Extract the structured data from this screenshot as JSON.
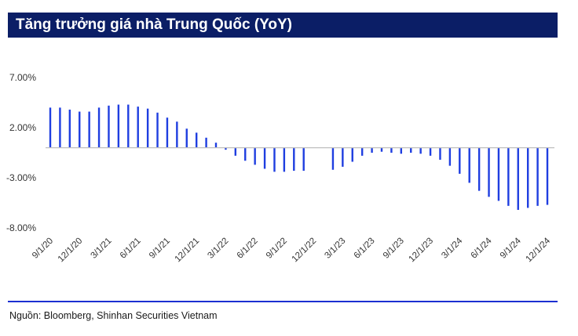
{
  "title": "Tăng trưởng giá nhà Trung Quốc (YoY)",
  "source": "Nguồn: Bloomberg, Shinhan Securities Vietnam",
  "colors": {
    "title_bg": "#0b1e66",
    "bar": "#1f3ee0",
    "footer_line": "#1b2fd1",
    "axis": "#bfbfbf",
    "tick_text": "#333333"
  },
  "chart_data": {
    "type": "bar",
    "title": "Tăng trưởng giá nhà Trung Quốc (YoY)",
    "xlabel": "",
    "ylabel": "",
    "ylim": [
      -8,
      7
    ],
    "grid": false,
    "legend": "none",
    "y_ticks": [
      {
        "value": 7,
        "label": "7.00%"
      },
      {
        "value": 2,
        "label": "2.00%"
      },
      {
        "value": -3,
        "label": "-3.00%"
      },
      {
        "value": -8,
        "label": "-8.00%"
      }
    ],
    "x_ticks": [
      {
        "index": 0,
        "label": "9/1/20"
      },
      {
        "index": 3,
        "label": "12/1/20"
      },
      {
        "index": 6,
        "label": "3/1/21"
      },
      {
        "index": 9,
        "label": "6/1/21"
      },
      {
        "index": 12,
        "label": "9/1/21"
      },
      {
        "index": 15,
        "label": "12/1/21"
      },
      {
        "index": 18,
        "label": "3/1/22"
      },
      {
        "index": 21,
        "label": "6/1/22"
      },
      {
        "index": 24,
        "label": "9/1/22"
      },
      {
        "index": 27,
        "label": "12/1/22"
      },
      {
        "index": 30,
        "label": "3/1/23"
      },
      {
        "index": 33,
        "label": "6/1/23"
      },
      {
        "index": 36,
        "label": "9/1/23"
      },
      {
        "index": 39,
        "label": "12/1/23"
      },
      {
        "index": 42,
        "label": "3/1/24"
      },
      {
        "index": 45,
        "label": "6/1/24"
      },
      {
        "index": 48,
        "label": "9/1/24"
      },
      {
        "index": 51,
        "label": "12/1/24"
      }
    ],
    "categories": [
      "9/1/20",
      "10/1/20",
      "11/1/20",
      "12/1/20",
      "1/1/21",
      "2/1/21",
      "3/1/21",
      "4/1/21",
      "5/1/21",
      "6/1/21",
      "7/1/21",
      "8/1/21",
      "9/1/21",
      "10/1/21",
      "11/1/21",
      "12/1/21",
      "1/1/22",
      "2/1/22",
      "3/1/22",
      "4/1/22",
      "5/1/22",
      "6/1/22",
      "7/1/22",
      "8/1/22",
      "9/1/22",
      "10/1/22",
      "11/1/22",
      "12/1/22",
      "1/1/23",
      "2/1/23",
      "3/1/23",
      "4/1/23",
      "5/1/23",
      "6/1/23",
      "7/1/23",
      "8/1/23",
      "9/1/23",
      "10/1/23",
      "11/1/23",
      "12/1/23",
      "1/1/24",
      "2/1/24",
      "3/1/24",
      "4/1/24",
      "5/1/24",
      "6/1/24",
      "7/1/24",
      "8/1/24",
      "9/1/24",
      "10/1/24",
      "11/1/24",
      "12/1/24"
    ],
    "values": [
      4.0,
      4.0,
      3.8,
      3.6,
      3.6,
      4.0,
      4.2,
      4.3,
      4.3,
      4.1,
      3.9,
      3.5,
      3.0,
      2.6,
      1.9,
      1.5,
      1.0,
      0.5,
      -0.2,
      -0.8,
      -1.3,
      -1.7,
      -2.1,
      -2.4,
      -2.4,
      -2.3,
      -2.3,
      0,
      0,
      -2.2,
      -1.9,
      -1.4,
      -0.8,
      -0.5,
      -0.4,
      -0.5,
      -0.6,
      -0.5,
      -0.6,
      -0.8,
      -1.2,
      -1.8,
      -2.6,
      -3.5,
      -4.3,
      -4.9,
      -5.3,
      -5.8,
      -6.2,
      -6.0,
      -5.8,
      -5.7
    ]
  }
}
